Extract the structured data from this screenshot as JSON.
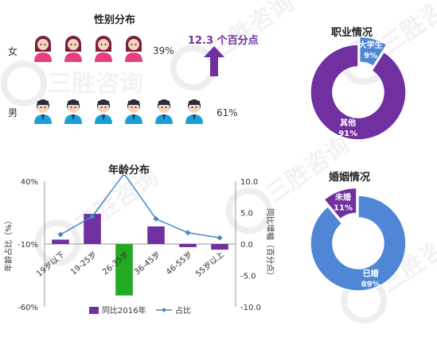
{
  "watermark": "三胜咨询",
  "gender": {
    "title": "性别分布",
    "female": {
      "label": "女",
      "icon_count": 4,
      "percent": "39%"
    },
    "male": {
      "label": "男",
      "icon_count": 6,
      "percent": "61%"
    },
    "callout": "12.3 个百分点",
    "colors": {
      "female_accent": "#e83e7c",
      "male_accent": "#1a9fd8",
      "arrow": "#7030a0"
    }
  },
  "occupation": {
    "title": "职业情况",
    "slices": [
      {
        "label": "大学生",
        "percent": "9%",
        "value": 9,
        "color": "#4f86d6"
      },
      {
        "label": "其他",
        "percent": "91%",
        "value": 91,
        "color": "#7030a0"
      }
    ]
  },
  "marriage": {
    "title": "婚姻情况",
    "slices": [
      {
        "label": "未婚",
        "percent": "11%",
        "value": 11,
        "color": "#7030a0"
      },
      {
        "label": "已婚",
        "percent": "89%",
        "value": 89,
        "color": "#4f86d6"
      }
    ]
  },
  "chart_data": {
    "type": "bar",
    "title": "年龄分布",
    "categories": [
      "19岁以下",
      "19-25岁",
      "26-35岁",
      "36-45岁",
      "46-55岁",
      "55岁以上"
    ],
    "series": [
      {
        "name": "同比2016年",
        "kind": "bar",
        "axis": "right",
        "values": [
          0.7,
          4.8,
          -8.2,
          2.8,
          -0.5,
          -0.9
        ],
        "color": "#7030a0",
        "highlight": {
          "index": 2,
          "color": "#22aa22"
        }
      },
      {
        "name": "占比",
        "kind": "line",
        "axis": "left",
        "values": [
          -2.5,
          12,
          46,
          10,
          -1,
          -5
        ],
        "color": "#4a86c8"
      }
    ],
    "ylabel_left": "年龄占比（%）",
    "ylabel_right": "同比增幅（百分点）",
    "left_ticks": [
      "40%",
      "-10%",
      "-60%"
    ],
    "right_ticks": [
      "10.0",
      "5.0",
      "0.0",
      "-5.0",
      "-10.0"
    ],
    "ylim_left": [
      -60,
      40
    ],
    "ylim_right": [
      -10,
      10
    ],
    "legend_position": "bottom"
  }
}
